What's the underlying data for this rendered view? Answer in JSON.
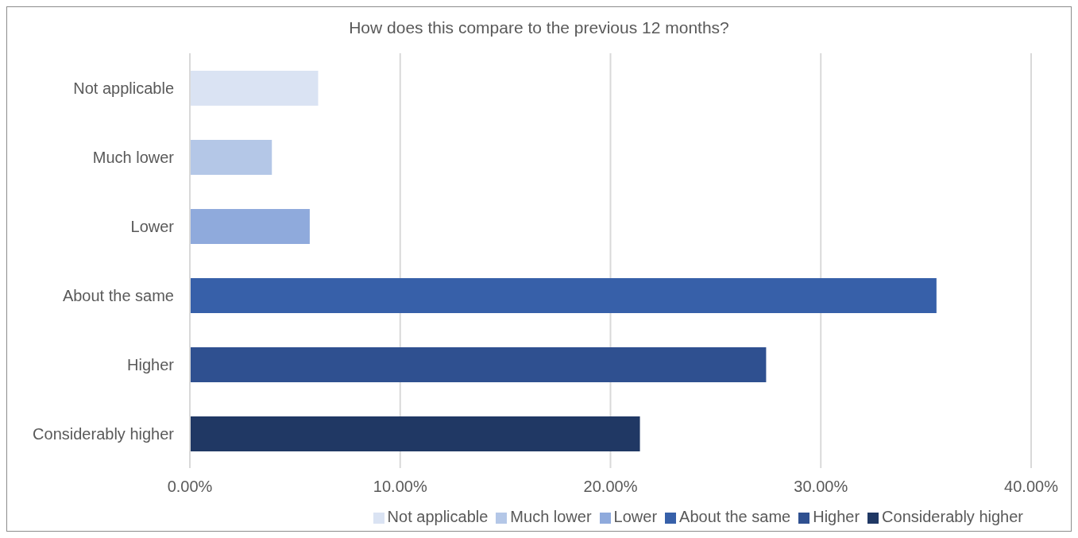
{
  "chart_data": {
    "type": "bar",
    "orientation": "horizontal",
    "stacked": true,
    "title": "How does this compare to the previous 12 months?",
    "categories": [
      "Not applicable",
      "Much lower",
      "Lower",
      "About the same",
      "Higher",
      "Considerably higher"
    ],
    "series": [
      {
        "name": "Not applicable",
        "color": "#dae3f3",
        "values": [
          6.1,
          null,
          null,
          null,
          null,
          null
        ]
      },
      {
        "name": "Much lower",
        "color": "#b4c7e7",
        "values": [
          null,
          3.9,
          null,
          null,
          null,
          null
        ]
      },
      {
        "name": "Lower",
        "color": "#8faadc",
        "values": [
          null,
          null,
          5.7,
          null,
          null,
          null
        ]
      },
      {
        "name": "About the same",
        "color": "#3760a9",
        "values": [
          null,
          null,
          null,
          35.5,
          null,
          null
        ]
      },
      {
        "name": "Higher",
        "color": "#2f5090",
        "values": [
          null,
          null,
          null,
          null,
          27.4,
          null
        ]
      },
      {
        "name": "Considerably higher",
        "color": "#203864",
        "values": [
          null,
          null,
          null,
          null,
          null,
          21.4
        ]
      }
    ],
    "xlim": [
      0,
      40
    ],
    "xticks": [
      {
        "value": 0,
        "label": "0.00%"
      },
      {
        "value": 10,
        "label": "10.00%"
      },
      {
        "value": 20,
        "label": "20.00%"
      },
      {
        "value": 30,
        "label": "30.00%"
      },
      {
        "value": 40,
        "label": "40.00%"
      }
    ],
    "grid": "x",
    "legend": "bottom"
  }
}
